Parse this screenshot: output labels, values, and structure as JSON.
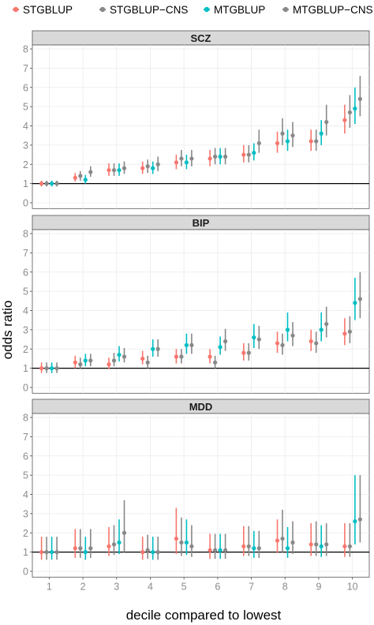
{
  "colors": {
    "STGBLUP": "#F8766D",
    "STGBLUP-CNS": "#7CAE00",
    "MTGBLUP": "#00BFC4",
    "MTGBLUP-CNS": "#C77CFF",
    "panel_bg": "#ffffff",
    "strip_bg": "#d9d9d9",
    "grid": "#ebebeb"
  },
  "chart_data": {
    "type": "scatter",
    "subtype": "point-with-error-bars, faceted",
    "legend": {
      "placement": "top",
      "entries": [
        "STGBLUP",
        "STGBLUP−CNS",
        "MTGBLUP",
        "MTGBLUP−CNS"
      ]
    },
    "xlabel": "decile compared to lowest",
    "ylabel": "odds ratio",
    "categories": [
      "1",
      "2",
      "3",
      "4",
      "5",
      "6",
      "7",
      "8",
      "9",
      "10"
    ],
    "yticks": [
      "0",
      "1",
      "2",
      "3",
      "4",
      "5",
      "6",
      "7",
      "8"
    ],
    "ylim": [
      -0.3,
      8.3
    ],
    "reference_line": 1,
    "grid": true,
    "panels": [
      {
        "title": "SCZ",
        "series": [
          {
            "name": "STGBLUP",
            "values": [
              1,
              1.3,
              1.7,
              1.8,
              2.1,
              2.3,
              2.5,
              3.1,
              3.2,
              4.3
            ],
            "lower": [
              0.85,
              1.1,
              1.4,
              1.5,
              1.75,
              1.9,
              2.1,
              2.6,
              2.7,
              3.6
            ],
            "upper": [
              1.15,
              1.55,
              2.05,
              2.15,
              2.5,
              2.75,
              3.0,
              3.7,
              3.8,
              5.1
            ]
          },
          {
            "name": "STGBLUP−CNS",
            "values": [
              1,
              1.4,
              1.7,
              1.9,
              2.3,
              2.4,
              2.5,
              3.6,
              3.2,
              4.7
            ],
            "lower": [
              0.85,
              1.15,
              1.4,
              1.55,
              1.9,
              2.0,
              2.1,
              3.0,
              2.7,
              3.9
            ],
            "upper": [
              1.15,
              1.65,
              2.05,
              2.25,
              2.75,
              2.85,
              3.0,
              4.4,
              3.8,
              5.6
            ]
          },
          {
            "name": "MTGBLUP",
            "values": [
              1,
              1.2,
              1.7,
              1.8,
              2.1,
              2.4,
              2.6,
              3.2,
              3.6,
              4.9
            ],
            "lower": [
              0.85,
              1.0,
              1.4,
              1.5,
              1.75,
              2.0,
              2.2,
              2.7,
              3.0,
              4.1
            ],
            "upper": [
              1.15,
              1.45,
              2.05,
              2.15,
              2.5,
              2.85,
              3.1,
              3.8,
              4.3,
              6.0
            ]
          },
          {
            "name": "MTGBLUP−CNS",
            "values": [
              1,
              1.6,
              1.8,
              2.0,
              2.3,
              2.4,
              3.1,
              3.5,
              4.2,
              5.4
            ],
            "lower": [
              0.85,
              1.35,
              1.5,
              1.65,
              1.9,
              2.0,
              2.6,
              2.9,
              3.5,
              4.5
            ],
            "upper": [
              1.15,
              1.9,
              2.15,
              2.4,
              2.75,
              2.85,
              3.8,
              4.2,
              5.1,
              6.6
            ]
          }
        ]
      },
      {
        "title": "BIP",
        "series": [
          {
            "name": "STGBLUP",
            "values": [
              1,
              1.3,
              1.2,
              1.5,
              1.6,
              1.6,
              1.8,
              2.3,
              2.4,
              2.8
            ],
            "lower": [
              0.75,
              1.0,
              0.95,
              1.2,
              1.25,
              1.25,
              1.4,
              1.8,
              1.9,
              2.2
            ],
            "upper": [
              1.3,
              1.65,
              1.55,
              1.9,
              2.0,
              2.0,
              2.3,
              2.9,
              3.0,
              3.6
            ]
          },
          {
            "name": "STGBLUP−CNS",
            "values": [
              1,
              1.2,
              1.4,
              1.3,
              1.6,
              1.3,
              1.8,
              2.2,
              2.3,
              2.9
            ],
            "lower": [
              0.75,
              0.95,
              1.1,
              1.0,
              1.25,
              1.0,
              1.4,
              1.7,
              1.8,
              2.3
            ],
            "upper": [
              1.3,
              1.55,
              1.8,
              1.65,
              2.0,
              1.65,
              2.3,
              2.8,
              2.9,
              3.7
            ]
          },
          {
            "name": "MTGBLUP",
            "values": [
              1,
              1.4,
              1.7,
              2.0,
              2.2,
              2.1,
              2.6,
              3.0,
              3.0,
              4.4
            ],
            "lower": [
              0.75,
              1.1,
              1.35,
              1.6,
              1.75,
              1.7,
              2.05,
              2.4,
              2.4,
              3.5
            ],
            "upper": [
              1.3,
              1.75,
              2.15,
              2.5,
              2.8,
              2.65,
              3.3,
              3.9,
              3.9,
              5.7
            ]
          },
          {
            "name": "MTGBLUP−CNS",
            "values": [
              1,
              1.4,
              1.6,
              2.0,
              2.2,
              2.4,
              2.5,
              2.7,
              3.3,
              4.6
            ],
            "lower": [
              0.75,
              1.1,
              1.3,
              1.6,
              1.75,
              1.9,
              2.0,
              2.15,
              2.6,
              3.6
            ],
            "upper": [
              1.3,
              1.75,
              2.05,
              2.5,
              2.8,
              3.05,
              3.2,
              3.4,
              4.2,
              6.0
            ]
          }
        ]
      },
      {
        "title": "MDD",
        "series": [
          {
            "name": "STGBLUP",
            "values": [
              1,
              1.2,
              1.3,
              1.0,
              1.7,
              1.1,
              1.3,
              1.6,
              1.4,
              1.3
            ],
            "lower": [
              0.6,
              0.7,
              0.8,
              0.6,
              0.9,
              0.65,
              0.8,
              0.95,
              0.8,
              0.75
            ],
            "upper": [
              1.8,
              2.2,
              2.3,
              1.8,
              3.3,
              1.95,
              2.35,
              2.7,
              2.5,
              2.5
            ]
          },
          {
            "name": "STGBLUP−CNS",
            "values": [
              1,
              1.2,
              1.4,
              1.1,
              1.5,
              1.1,
              1.3,
              1.7,
              1.4,
              1.3
            ],
            "lower": [
              0.6,
              0.7,
              0.85,
              0.65,
              0.8,
              0.65,
              0.8,
              1.0,
              0.8,
              0.75
            ],
            "upper": [
              1.8,
              2.2,
              2.4,
              1.9,
              2.8,
              1.95,
              2.35,
              3.2,
              2.6,
              2.5
            ]
          },
          {
            "name": "MTGBLUP",
            "values": [
              1,
              1.0,
              1.5,
              1.0,
              1.5,
              1.1,
              1.2,
              1.2,
              1.3,
              2.6
            ],
            "lower": [
              0.6,
              0.6,
              0.9,
              0.6,
              0.85,
              0.65,
              0.7,
              0.7,
              0.75,
              1.4
            ],
            "upper": [
              1.8,
              1.8,
              2.7,
              1.8,
              2.7,
              1.95,
              2.1,
              2.3,
              2.4,
              5.0
            ]
          },
          {
            "name": "MTGBLUP−CNS",
            "values": [
              1,
              1.2,
              2.0,
              1.0,
              1.3,
              1.1,
              1.2,
              1.5,
              1.4,
              2.7
            ],
            "lower": [
              0.6,
              0.7,
              1.0,
              0.6,
              0.75,
              0.65,
              0.7,
              0.9,
              0.8,
              1.5
            ],
            "upper": [
              1.8,
              2.2,
              3.7,
              1.8,
              2.4,
              1.95,
              2.1,
              2.6,
              2.5,
              5.0
            ]
          }
        ]
      }
    ]
  }
}
